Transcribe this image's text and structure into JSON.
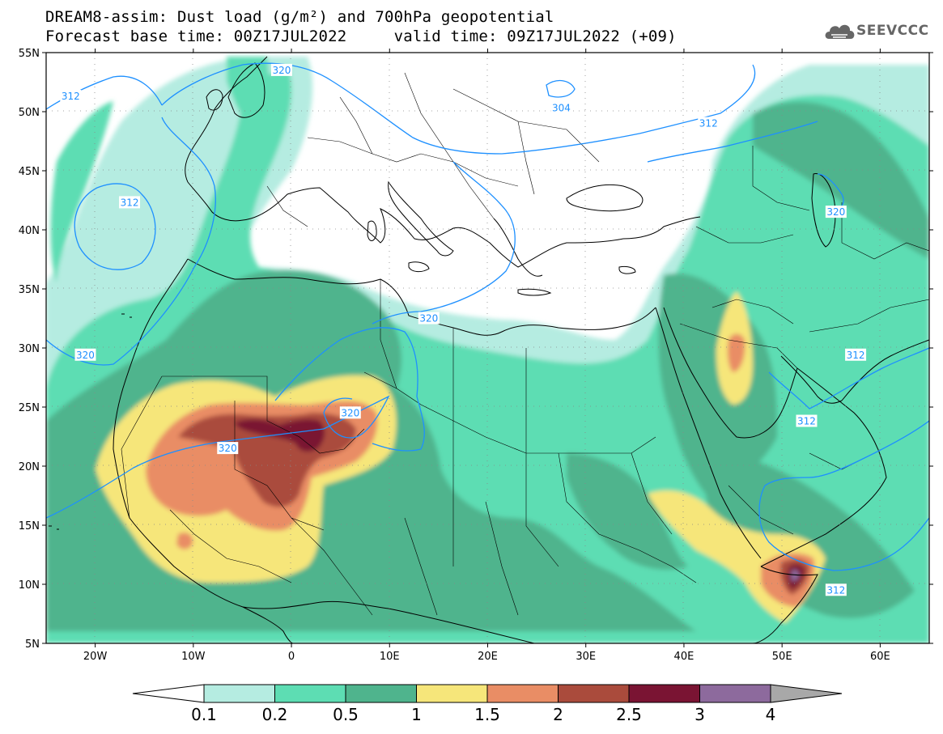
{
  "title_line1": "DREAM8-assim: Dust load (g/m²) and 700hPa geopotential",
  "title_line2": "Forecast base time: 00Z17JUL2022     valid time: 09Z17JUL2022 (+09)",
  "logo": "SEEVCCC",
  "lat_labels": [
    "55N",
    "50N",
    "45N",
    "40N",
    "35N",
    "30N",
    "25N",
    "20N",
    "15N",
    "10N",
    "5N"
  ],
  "lat_values": [
    55,
    50,
    45,
    40,
    35,
    30,
    25,
    20,
    15,
    10,
    5
  ],
  "lon_labels": [
    "20W",
    "10W",
    "0",
    "10E",
    "20E",
    "30E",
    "40E",
    "50E",
    "60E"
  ],
  "lon_values": [
    -20,
    -10,
    0,
    10,
    20,
    30,
    40,
    50,
    60
  ],
  "map_extent": {
    "lon_min": -25,
    "lon_max": 65,
    "lat_min": 5,
    "lat_max": 55
  },
  "contour_labels": [
    {
      "text": "320",
      "lon": -1,
      "lat": 53.5
    },
    {
      "text": "312",
      "lon": -22.5,
      "lat": 51.3
    },
    {
      "text": "304",
      "lon": 27.5,
      "lat": 50.3
    },
    {
      "text": "312",
      "lon": 42.5,
      "lat": 49.0
    },
    {
      "text": "312",
      "lon": -16.5,
      "lat": 42.3
    },
    {
      "text": "320",
      "lon": 55.5,
      "lat": 41.5
    },
    {
      "text": "320",
      "lon": 14,
      "lat": 32.5
    },
    {
      "text": "320",
      "lon": -21,
      "lat": 29.4
    },
    {
      "text": "312",
      "lon": 57.5,
      "lat": 29.4
    },
    {
      "text": "320",
      "lon": 6,
      "lat": 24.5
    },
    {
      "text": "312",
      "lon": 52.5,
      "lat": 23.8
    },
    {
      "text": "320",
      "lon": -6.5,
      "lat": 21.5
    },
    {
      "text": "312",
      "lon": 55.5,
      "lat": 9.5
    }
  ],
  "colorbar": {
    "labels": [
      "0.1",
      "0.2",
      "0.5",
      "1",
      "1.5",
      "2",
      "2.5",
      "3",
      "4"
    ],
    "colors": [
      "#ffffff",
      "#b5ece1",
      "#5dddb3",
      "#4fb48d",
      "#f6e67a",
      "#e98d65",
      "#aa4b3c",
      "#7a1433",
      "#8d6a9d",
      "#a8a8a8"
    ]
  }
}
